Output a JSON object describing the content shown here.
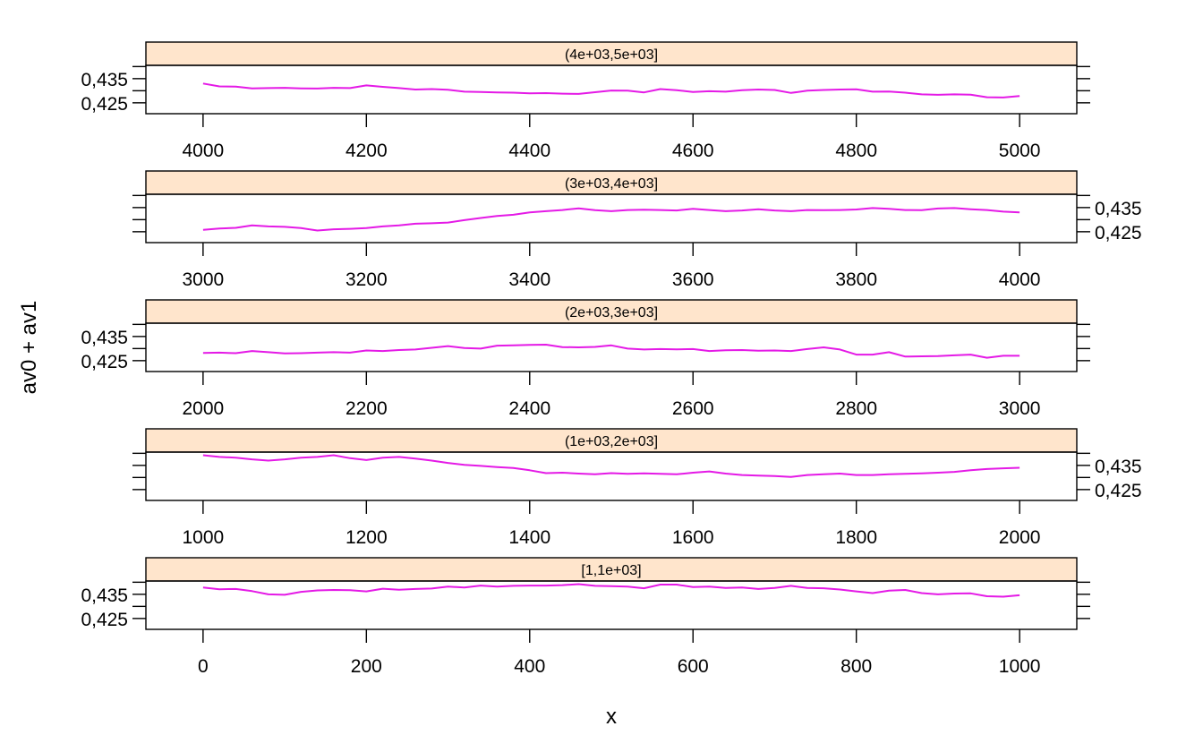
{
  "chart_data": {
    "type": "line",
    "xlabel": "x",
    "ylabel": "av0 + av1",
    "line_color": "#e41ae6",
    "strip_color": "#ffe5cc",
    "ylim": [
      0.4205,
      0.4405
    ],
    "y_ticks": [
      0.425,
      0.435
    ],
    "y_tick_labels": [
      "0,425",
      "0,435"
    ],
    "panels": [
      {
        "strip": "(4e+03,5e+03]",
        "xlim": [
          3930,
          5070
        ],
        "x_ticks": [
          4000,
          4200,
          4400,
          4600,
          4800,
          5000
        ],
        "y_labels_side": "left",
        "series": [
          {
            "x": [
              4000,
              4020,
              4040,
              4060,
              4080,
              4100,
              4120,
              4140,
              4160,
              4180,
              4200,
              4220,
              4240,
              4260,
              4280,
              4300,
              4320,
              4340,
              4360,
              4380,
              4400,
              4420,
              4440,
              4460,
              4480,
              4500,
              4520,
              4540,
              4560,
              4580,
              4600,
              4620,
              4640,
              4660,
              4680,
              4700,
              4720,
              4740,
              4760,
              4780,
              4800,
              4820,
              4840,
              4860,
              4880,
              4900,
              4920,
              4940,
              4960,
              4980,
              5000
            ],
            "y": [
              0.433,
              0.4318,
              0.4317,
              0.431,
              0.4311,
              0.4312,
              0.431,
              0.4309,
              0.4312,
              0.4311,
              0.4322,
              0.4316,
              0.4311,
              0.4305,
              0.4307,
              0.4304,
              0.4296,
              0.4295,
              0.4293,
              0.4292,
              0.4289,
              0.429,
              0.4288,
              0.4287,
              0.4294,
              0.4301,
              0.43,
              0.4293,
              0.4307,
              0.4302,
              0.4295,
              0.4298,
              0.4296,
              0.4302,
              0.4305,
              0.4303,
              0.4291,
              0.43,
              0.4303,
              0.4305,
              0.4306,
              0.4296,
              0.4297,
              0.4292,
              0.4285,
              0.4283,
              0.4285,
              0.4284,
              0.4273,
              0.4272,
              0.4278
            ]
          }
        ]
      },
      {
        "strip": "(3e+03,4e+03]",
        "xlim": [
          2930,
          4070
        ],
        "x_ticks": [
          3000,
          3200,
          3400,
          3600,
          3800,
          4000
        ],
        "y_labels_side": "right",
        "series": [
          {
            "x": [
              3000,
              3020,
              3040,
              3060,
              3080,
              3100,
              3120,
              3140,
              3160,
              3180,
              3200,
              3220,
              3240,
              3260,
              3280,
              3300,
              3320,
              3340,
              3360,
              3380,
              3400,
              3420,
              3440,
              3460,
              3480,
              3500,
              3520,
              3540,
              3560,
              3580,
              3600,
              3620,
              3640,
              3660,
              3680,
              3700,
              3720,
              3740,
              3760,
              3780,
              3800,
              3820,
              3840,
              3860,
              3880,
              3900,
              3920,
              3940,
              3960,
              3980,
              4000
            ],
            "y": [
              0.4258,
              0.4263,
              0.4266,
              0.4276,
              0.4272,
              0.427,
              0.4265,
              0.4255,
              0.426,
              0.4262,
              0.4265,
              0.4272,
              0.4276,
              0.4283,
              0.4285,
              0.4288,
              0.4298,
              0.4307,
              0.4315,
              0.432,
              0.433,
              0.4335,
              0.434,
              0.4347,
              0.4339,
              0.4335,
              0.434,
              0.4341,
              0.434,
              0.4338,
              0.4345,
              0.434,
              0.4335,
              0.4338,
              0.4343,
              0.4338,
              0.4335,
              0.434,
              0.4339,
              0.434,
              0.4342,
              0.4348,
              0.4345,
              0.434,
              0.4339,
              0.4346,
              0.4348,
              0.4343,
              0.434,
              0.4333,
              0.433
            ]
          }
        ]
      },
      {
        "strip": "(2e+03,3e+03]",
        "xlim": [
          1930,
          3070
        ],
        "x_ticks": [
          2000,
          2200,
          2400,
          2600,
          2800,
          3000
        ],
        "y_labels_side": "left",
        "series": [
          {
            "x": [
              2000,
              2020,
              2040,
              2060,
              2080,
              2100,
              2120,
              2140,
              2160,
              2180,
              2200,
              2220,
              2240,
              2260,
              2280,
              2300,
              2320,
              2340,
              2360,
              2380,
              2400,
              2420,
              2440,
              2460,
              2480,
              2500,
              2520,
              2540,
              2560,
              2580,
              2600,
              2620,
              2640,
              2660,
              2680,
              2700,
              2720,
              2740,
              2760,
              2780,
              2800,
              2820,
              2840,
              2860,
              2880,
              2900,
              2920,
              2940,
              2960,
              2980,
              3000
            ],
            "y": [
              0.4282,
              0.4283,
              0.4281,
              0.429,
              0.4285,
              0.428,
              0.4281,
              0.4283,
              0.4285,
              0.4283,
              0.4292,
              0.429,
              0.4294,
              0.4296,
              0.4303,
              0.431,
              0.4302,
              0.43,
              0.4312,
              0.4313,
              0.4315,
              0.4316,
              0.4306,
              0.4305,
              0.4307,
              0.4313,
              0.43,
              0.4296,
              0.4298,
              0.4297,
              0.4298,
              0.429,
              0.4293,
              0.4294,
              0.4291,
              0.4292,
              0.429,
              0.4298,
              0.4305,
              0.4296,
              0.4275,
              0.4275,
              0.4285,
              0.4267,
              0.4268,
              0.4269,
              0.4272,
              0.4275,
              0.4262,
              0.427,
              0.427
            ]
          }
        ]
      },
      {
        "strip": "(1e+03,2e+03]",
        "xlim": [
          930,
          2070
        ],
        "x_ticks": [
          1000,
          1200,
          1400,
          1600,
          1800,
          2000
        ],
        "y_labels_side": "right",
        "series": [
          {
            "x": [
              1000,
              1020,
              1040,
              1060,
              1080,
              1100,
              1120,
              1140,
              1160,
              1180,
              1200,
              1220,
              1240,
              1260,
              1280,
              1300,
              1320,
              1340,
              1360,
              1380,
              1400,
              1420,
              1440,
              1460,
              1480,
              1500,
              1520,
              1540,
              1560,
              1580,
              1600,
              1620,
              1640,
              1660,
              1680,
              1700,
              1720,
              1740,
              1760,
              1780,
              1800,
              1820,
              1840,
              1860,
              1880,
              1900,
              1920,
              1940,
              1960,
              1980,
              2000
            ],
            "y": [
              0.4392,
              0.4385,
              0.4382,
              0.4375,
              0.437,
              0.4375,
              0.4382,
              0.4385,
              0.4392,
              0.438,
              0.4372,
              0.4382,
              0.4385,
              0.4378,
              0.437,
              0.436,
              0.4352,
              0.4348,
              0.4343,
              0.4339,
              0.433,
              0.4318,
              0.432,
              0.4316,
              0.4313,
              0.4318,
              0.4315,
              0.4317,
              0.4315,
              0.4313,
              0.432,
              0.4325,
              0.4316,
              0.431,
              0.4308,
              0.4306,
              0.4302,
              0.431,
              0.4313,
              0.4316,
              0.431,
              0.431,
              0.4313,
              0.4315,
              0.4317,
              0.432,
              0.4323,
              0.433,
              0.4335,
              0.4338,
              0.434
            ]
          }
        ]
      },
      {
        "strip": "[1,1e+03]",
        "xlim": [
          -70,
          1070
        ],
        "x_ticks": [
          0,
          200,
          400,
          600,
          800,
          1000
        ],
        "y_labels_side": "left",
        "series": [
          {
            "x": [
              0,
              20,
              40,
              60,
              80,
              100,
              120,
              140,
              160,
              180,
              200,
              220,
              240,
              260,
              280,
              300,
              320,
              340,
              360,
              380,
              400,
              420,
              440,
              460,
              480,
              500,
              520,
              540,
              560,
              580,
              600,
              620,
              640,
              660,
              680,
              700,
              720,
              740,
              760,
              780,
              800,
              820,
              840,
              860,
              880,
              900,
              920,
              940,
              960,
              980,
              1000
            ],
            "y": [
              0.4378,
              0.4371,
              0.4372,
              0.4363,
              0.435,
              0.4348,
              0.436,
              0.4366,
              0.4368,
              0.4367,
              0.4362,
              0.4373,
              0.4369,
              0.4372,
              0.4374,
              0.4382,
              0.4378,
              0.4386,
              0.4382,
              0.4385,
              0.4386,
              0.4386,
              0.4388,
              0.4392,
              0.4385,
              0.4384,
              0.4382,
              0.4375,
              0.439,
              0.439,
              0.438,
              0.4382,
              0.4376,
              0.4378,
              0.4372,
              0.4376,
              0.4385,
              0.4376,
              0.4375,
              0.437,
              0.4362,
              0.4355,
              0.4365,
              0.4368,
              0.4355,
              0.435,
              0.4353,
              0.4354,
              0.4342,
              0.434,
              0.4346
            ]
          }
        ]
      }
    ]
  }
}
